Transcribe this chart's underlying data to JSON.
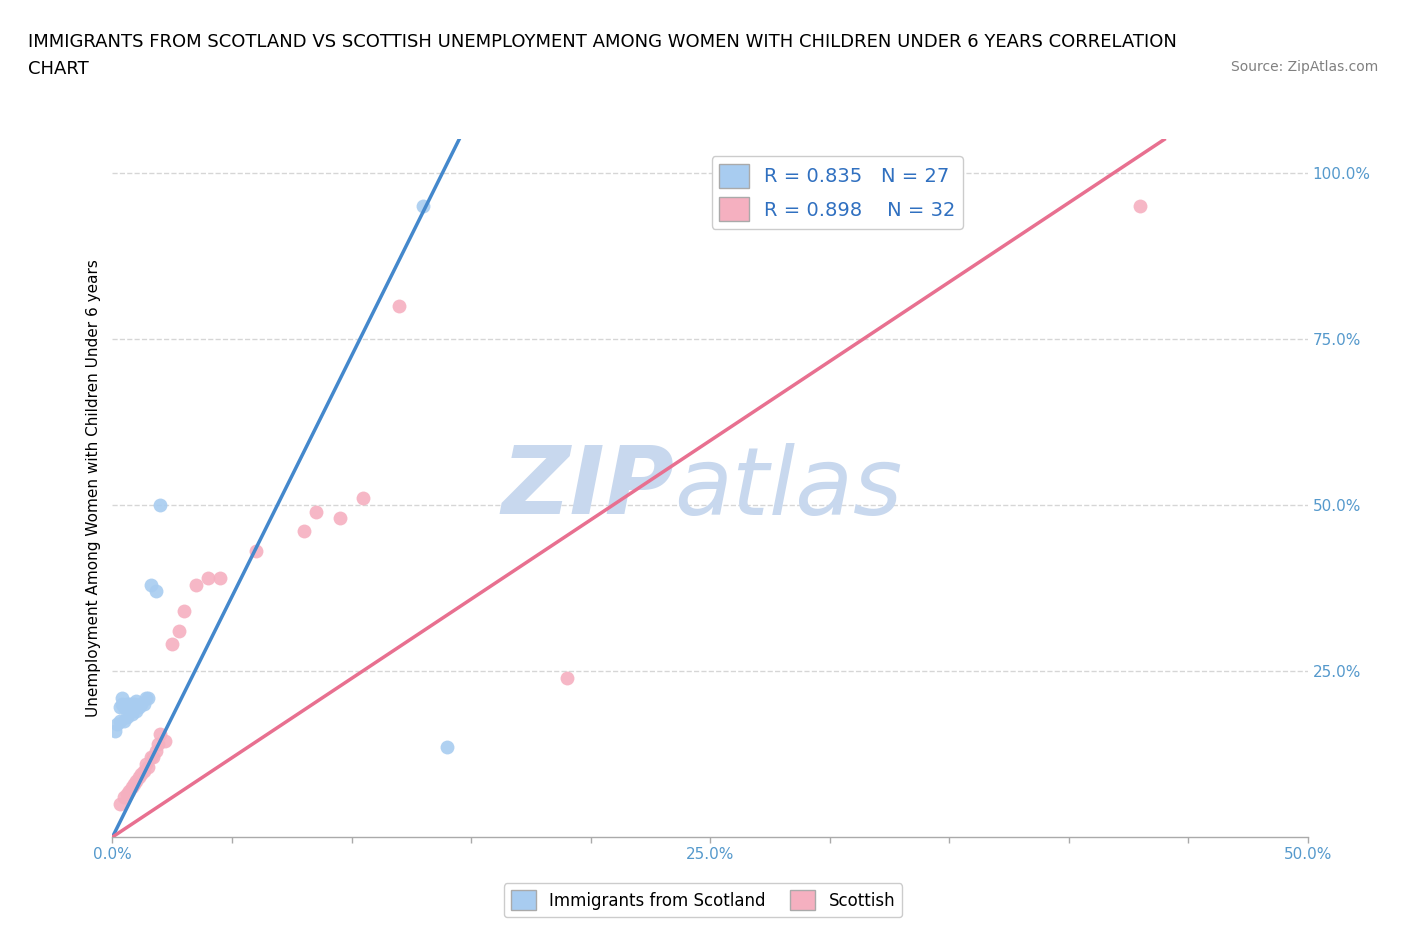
{
  "title_line1": "IMMIGRANTS FROM SCOTLAND VS SCOTTISH UNEMPLOYMENT AMONG WOMEN WITH CHILDREN UNDER 6 YEARS CORRELATION",
  "title_line2": "CHART",
  "source_text": "Source: ZipAtlas.com",
  "ylabel": "Unemployment Among Women with Children Under 6 years",
  "xlim": [
    0.0,
    0.5
  ],
  "ylim": [
    0.0,
    1.05
  ],
  "ytick_labels_right": [
    "100.0%",
    "75.0%",
    "50.0%",
    "25.0%"
  ],
  "ytick_positions_right": [
    1.0,
    0.75,
    0.5,
    0.25
  ],
  "blue_color": "#A8CCF0",
  "pink_color": "#F5B0C0",
  "blue_line_color": "#4488CC",
  "pink_line_color": "#E87090",
  "legend_R1": "R = 0.835",
  "legend_N1": "N = 27",
  "legend_R2": "R = 0.898",
  "legend_N2": "N = 32",
  "watermark_zip": "ZIP",
  "watermark_atlas": "atlas",
  "watermark_color": "#C8D8EE",
  "grid_color": "#CCCCCC",
  "blue_scatter_x": [
    0.001,
    0.002,
    0.003,
    0.003,
    0.004,
    0.004,
    0.005,
    0.005,
    0.006,
    0.006,
    0.007,
    0.007,
    0.008,
    0.008,
    0.009,
    0.01,
    0.01,
    0.011,
    0.012,
    0.013,
    0.014,
    0.015,
    0.016,
    0.018,
    0.02,
    0.13,
    0.14
  ],
  "blue_scatter_y": [
    0.16,
    0.17,
    0.175,
    0.195,
    0.2,
    0.21,
    0.175,
    0.195,
    0.18,
    0.2,
    0.19,
    0.2,
    0.185,
    0.2,
    0.2,
    0.19,
    0.205,
    0.195,
    0.2,
    0.2,
    0.21,
    0.21,
    0.38,
    0.37,
    0.5,
    0.95,
    0.135
  ],
  "pink_scatter_x": [
    0.003,
    0.005,
    0.006,
    0.007,
    0.008,
    0.009,
    0.01,
    0.011,
    0.012,
    0.013,
    0.014,
    0.015,
    0.016,
    0.017,
    0.018,
    0.019,
    0.02,
    0.022,
    0.025,
    0.028,
    0.03,
    0.035,
    0.04,
    0.045,
    0.06,
    0.08,
    0.085,
    0.095,
    0.105,
    0.12,
    0.19,
    0.43
  ],
  "pink_scatter_y": [
    0.05,
    0.06,
    0.065,
    0.07,
    0.075,
    0.08,
    0.085,
    0.09,
    0.095,
    0.1,
    0.11,
    0.105,
    0.12,
    0.12,
    0.13,
    0.14,
    0.155,
    0.145,
    0.29,
    0.31,
    0.34,
    0.38,
    0.39,
    0.39,
    0.43,
    0.46,
    0.49,
    0.48,
    0.51,
    0.8,
    0.24,
    0.95
  ],
  "blue_line_x": [
    0.0,
    0.145
  ],
  "blue_line_y": [
    0.0,
    1.05
  ],
  "pink_line_x": [
    0.0,
    0.44
  ],
  "pink_line_y": [
    0.0,
    1.05
  ],
  "background_color": "#FFFFFF",
  "title_fontsize": 13,
  "axis_label_fontsize": 11,
  "scatter_size": 100
}
